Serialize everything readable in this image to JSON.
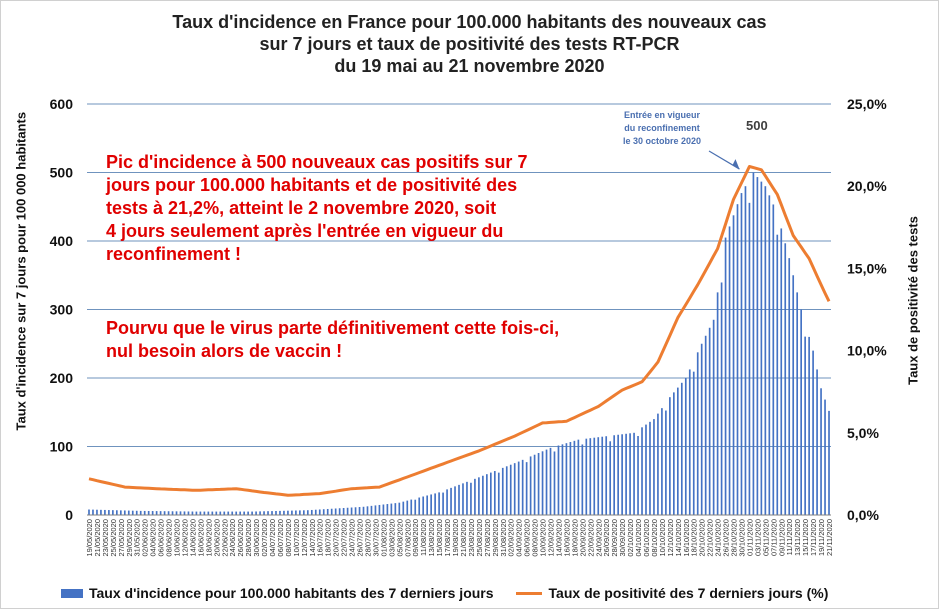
{
  "chart_data": {
    "type": "bar+line",
    "title_lines": [
      "Taux d'incidence en France pour 100.000 habitants des nouveaux cas",
      "sur 7 jours et taux de positivité des tests RT-PCR",
      "du 19 mai au 21 novembre 2020"
    ],
    "ylabel_left": "Taux d'incidence sur 7 jours pour 100 000 habitants",
    "ylabel_right": "Taux de positivité des tests",
    "y_left": {
      "min": 0,
      "max": 600,
      "ticks": [
        "0",
        "100",
        "200",
        "300",
        "400",
        "500",
        "600"
      ]
    },
    "y_right": {
      "min": 0,
      "max": 25,
      "ticks": [
        "0,0%",
        "5,0%",
        "10,0%",
        "15,0%",
        "20,0%",
        "25,0%"
      ]
    },
    "x_start": "2020-05-19",
    "x_tick_labels": [
      "19/05/2020",
      "21/05/2020",
      "23/05/2020",
      "25/05/2020",
      "27/05/2020",
      "29/05/2020",
      "31/05/2020",
      "02/06/2020",
      "04/06/2020",
      "06/06/2020",
      "08/06/2020",
      "10/06/2020",
      "12/06/2020",
      "14/06/2020",
      "16/06/2020",
      "18/06/2020",
      "20/06/2020",
      "22/06/2020",
      "24/06/2020",
      "26/06/2020",
      "28/06/2020",
      "30/06/2020",
      "02/07/2020",
      "04/07/2020",
      "06/07/2020",
      "08/07/2020",
      "10/07/2020",
      "12/07/2020",
      "14/07/2020",
      "16/07/2020",
      "18/07/2020",
      "20/07/2020",
      "22/07/2020",
      "24/07/2020",
      "26/07/2020",
      "28/07/2020",
      "30/07/2020",
      "01/08/2020",
      "03/08/2020",
      "05/08/2020",
      "07/08/2020",
      "09/08/2020",
      "11/08/2020",
      "13/08/2020",
      "15/08/2020",
      "17/08/2020",
      "19/08/2020",
      "21/08/2020",
      "23/08/2020",
      "25/08/2020",
      "27/08/2020",
      "29/08/2020",
      "31/08/2020",
      "02/09/2020",
      "04/09/2020",
      "06/09/2020",
      "08/09/2020",
      "10/09/2020",
      "12/09/2020",
      "14/09/2020",
      "16/09/2020",
      "18/09/2020",
      "20/09/2020",
      "22/09/2020",
      "24/09/2020",
      "26/09/2020",
      "28/09/2020",
      "30/09/2020",
      "02/10/2020",
      "04/10/2020",
      "06/10/2020",
      "08/10/2020",
      "10/10/2020",
      "12/10/2020",
      "14/10/2020",
      "16/10/2020",
      "18/10/2020",
      "20/10/2020",
      "22/10/2020",
      "24/10/2020",
      "26/10/2020",
      "28/10/2020",
      "30/10/2020",
      "01/11/2020",
      "03/11/2020",
      "05/11/2020",
      "07/11/2020",
      "09/11/2020",
      "11/11/2020",
      "13/11/2020",
      "15/11/2020",
      "17/11/2020",
      "19/11/2020",
      "21/11/2020"
    ],
    "series": [
      {
        "name": "Taux d'incidence  pour 100.000 habitants des 7 derniers jours",
        "kind": "bar",
        "axis": "left",
        "color": "#4472c4",
        "key_points": [
          [
            "2020-05-19",
            8
          ],
          [
            "2020-06-01",
            6
          ],
          [
            "2020-06-15",
            5
          ],
          [
            "2020-06-29",
            5
          ],
          [
            "2020-07-13",
            7
          ],
          [
            "2020-07-27",
            12
          ],
          [
            "2020-08-05",
            18
          ],
          [
            "2020-08-15",
            33
          ],
          [
            "2020-08-25",
            55
          ],
          [
            "2020-09-04",
            78
          ],
          [
            "2020-09-12",
            98
          ],
          [
            "2020-09-19",
            110
          ],
          [
            "2020-09-26",
            115
          ],
          [
            "2020-10-03",
            120
          ],
          [
            "2020-10-08",
            140
          ],
          [
            "2020-10-12",
            172
          ],
          [
            "2020-10-16",
            200
          ],
          [
            "2020-10-20",
            250
          ],
          [
            "2020-10-23",
            285
          ],
          [
            "2020-10-26",
            405
          ],
          [
            "2020-10-30",
            470
          ],
          [
            "2020-11-02",
            500
          ],
          [
            "2020-11-05",
            480
          ],
          [
            "2020-11-08",
            440
          ],
          [
            "2020-11-11",
            375
          ],
          [
            "2020-11-14",
            300
          ],
          [
            "2020-11-17",
            240
          ],
          [
            "2020-11-19",
            185
          ],
          [
            "2020-11-21",
            152
          ]
        ]
      },
      {
        "name": "Taux de positivité des 7 derniers jours (%)",
        "kind": "line",
        "axis": "right",
        "color": "#ed7d31",
        "key_points": [
          [
            "2020-05-19",
            2.2
          ],
          [
            "2020-05-28",
            1.7
          ],
          [
            "2020-06-05",
            1.6
          ],
          [
            "2020-06-15",
            1.5
          ],
          [
            "2020-06-25",
            1.6
          ],
          [
            "2020-07-01",
            1.4
          ],
          [
            "2020-07-08",
            1.2
          ],
          [
            "2020-07-16",
            1.3
          ],
          [
            "2020-07-24",
            1.6
          ],
          [
            "2020-07-31",
            1.7
          ],
          [
            "2020-08-08",
            2.4
          ],
          [
            "2020-08-17",
            3.2
          ],
          [
            "2020-08-25",
            3.9
          ],
          [
            "2020-09-03",
            4.8
          ],
          [
            "2020-09-10",
            5.6
          ],
          [
            "2020-09-16",
            5.7
          ],
          [
            "2020-09-24",
            6.6
          ],
          [
            "2020-09-30",
            7.6
          ],
          [
            "2020-10-05",
            8.1
          ],
          [
            "2020-10-09",
            9.3
          ],
          [
            "2020-10-14",
            12.0
          ],
          [
            "2020-10-19",
            14.0
          ],
          [
            "2020-10-24",
            16.2
          ],
          [
            "2020-10-28",
            19.2
          ],
          [
            "2020-11-01",
            21.2
          ],
          [
            "2020-11-04",
            21.0
          ],
          [
            "2020-11-08",
            19.5
          ],
          [
            "2020-11-12",
            17.0
          ],
          [
            "2020-11-16",
            15.6
          ],
          [
            "2020-11-19",
            14.0
          ],
          [
            "2020-11-21",
            13.0
          ]
        ]
      }
    ],
    "annotations": {
      "peak_label": "500",
      "reconfinement_lines": [
        "Entrée en vigueur",
        "du reconfinement",
        "le 30 octobre 2020"
      ],
      "commentary_1": [
        "Pic d'incidence à 500 nouveaux cas positifs sur 7",
        "jours pour 100.000 habitants et de positivité des",
        "tests à 21,2%, atteint le 2 novembre 2020, soit",
        "4 jours seulement après l'entrée en vigueur du",
        "reconfinement !"
      ],
      "commentary_2": [
        "Pourvu que le virus parte définitivement cette fois-ci,",
        "nul besoin alors de vaccin !"
      ]
    },
    "grid": true,
    "legend_position": "bottom"
  }
}
